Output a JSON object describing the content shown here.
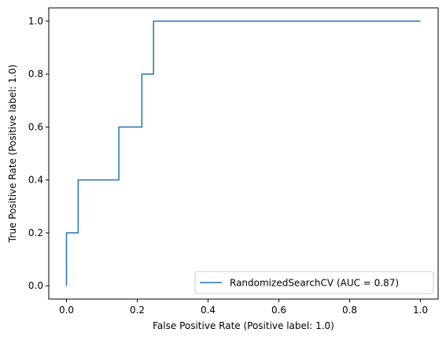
{
  "chart_data": {
    "type": "line",
    "title": "",
    "xlabel": "False Positive Rate (Positive label: 1.0)",
    "ylabel": "True Positive Rate (Positive label: 1.0)",
    "xlim": [
      -0.05,
      1.05
    ],
    "ylim": [
      -0.05,
      1.05
    ],
    "xticks": [
      0.0,
      0.2,
      0.4,
      0.6,
      0.8,
      1.0
    ],
    "yticks": [
      0.0,
      0.2,
      0.4,
      0.6,
      0.8,
      1.0
    ],
    "xtick_labels": [
      "0.0",
      "0.2",
      "0.4",
      "0.6",
      "0.8",
      "1.0"
    ],
    "ytick_labels": [
      "0.0",
      "0.2",
      "0.4",
      "0.6",
      "0.8",
      "1.0"
    ],
    "grid": false,
    "legend_position": "lower-right",
    "series": [
      {
        "name": "RandomizedSearchCV (AUC = 0.87)",
        "color": "#1f77b4",
        "x": [
          0.0,
          0.0,
          0.033,
          0.033,
          0.148,
          0.148,
          0.213,
          0.213,
          0.246,
          0.246,
          1.0
        ],
        "y": [
          0.0,
          0.2,
          0.2,
          0.4,
          0.4,
          0.6,
          0.6,
          0.8,
          0.8,
          1.0,
          1.0
        ]
      }
    ]
  }
}
